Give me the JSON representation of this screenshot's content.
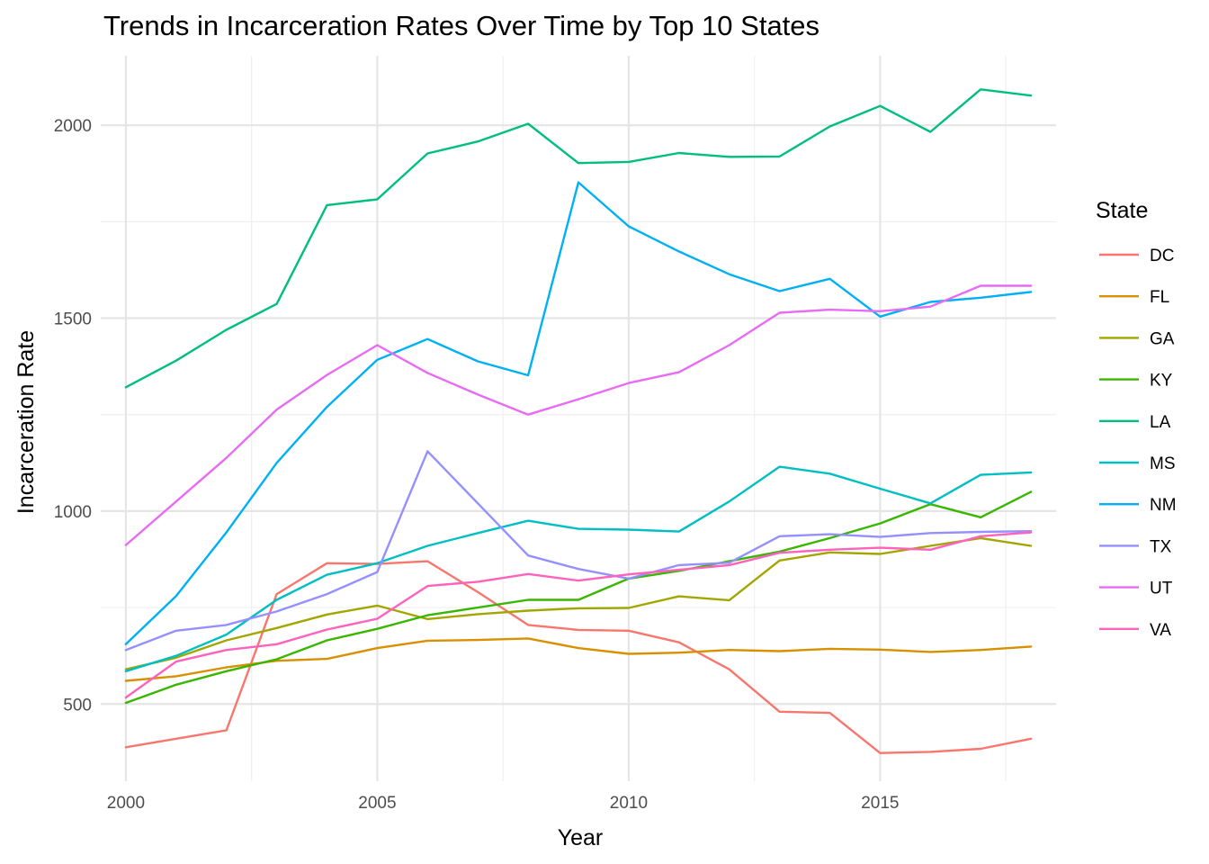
{
  "chart_data": {
    "type": "line",
    "title": "Trends in Incarceration Rates Over Time by Top 10 States",
    "xlabel": "Year",
    "ylabel": "Incarceration Rate",
    "xlim": [
      1999.5,
      2018.5
    ],
    "ylim": [
      300,
      2180
    ],
    "x_ticks": [
      2000,
      2005,
      2010,
      2015
    ],
    "x_tick_labels": [
      "2000",
      "2005",
      "2010",
      "2015"
    ],
    "x_minor_ticks": [
      2002.5,
      2007.5,
      2012.5,
      2017.5
    ],
    "y_ticks": [
      500,
      1000,
      1500,
      2000
    ],
    "y_tick_labels": [
      "500",
      "1000",
      "1500",
      "2000"
    ],
    "y_minor_ticks": [
      750,
      1250,
      1750
    ],
    "grid": true,
    "legend": {
      "title": "State",
      "position": "right"
    },
    "x": [
      2000,
      2001,
      2002,
      2003,
      2004,
      2005,
      2006,
      2007,
      2008,
      2009,
      2010,
      2011,
      2012,
      2013,
      2014,
      2015,
      2016,
      2017,
      2018
    ],
    "series": [
      {
        "name": "DC",
        "color": "#F8766D",
        "values": [
          388,
          410,
          432,
          785,
          865,
          863,
          870,
          790,
          705,
          692,
          690,
          660,
          590,
          480,
          477,
          373,
          376,
          384,
          410
        ]
      },
      {
        "name": "FL",
        "color": "#D89000",
        "values": [
          560,
          572,
          595,
          612,
          617,
          645,
          664,
          666,
          670,
          645,
          630,
          633,
          640,
          637,
          643,
          641,
          635,
          640,
          649
        ]
      },
      {
        "name": "GA",
        "color": "#A3A500",
        "values": [
          590,
          620,
          665,
          697,
          732,
          755,
          720,
          733,
          742,
          748,
          749,
          779,
          769,
          872,
          893,
          889,
          910,
          930,
          910
        ]
      },
      {
        "name": "KY",
        "color": "#39B600",
        "values": [
          503,
          550,
          585,
          616,
          665,
          695,
          730,
          750,
          770,
          770,
          825,
          845,
          870,
          895,
          930,
          968,
          1018,
          984,
          1050
        ]
      },
      {
        "name": "LA",
        "color": "#00BF7D",
        "values": [
          1321,
          1390,
          1470,
          1537,
          1793,
          1808,
          1927,
          1958,
          2004,
          1902,
          1905,
          1928,
          1918,
          1919,
          1997,
          2050,
          1983,
          2093,
          2077
        ]
      },
      {
        "name": "MS",
        "color": "#00BFC4",
        "values": [
          585,
          625,
          680,
          770,
          835,
          865,
          910,
          943,
          975,
          954,
          952,
          947,
          1025,
          1115,
          1097,
          1058,
          1020,
          1094,
          1100
        ]
      },
      {
        "name": "NM",
        "color": "#00B0F6",
        "values": [
          655,
          780,
          945,
          1125,
          1270,
          1392,
          1446,
          1388,
          1352,
          1852,
          1738,
          1673,
          1614,
          1570,
          1602,
          1504,
          1542,
          1553,
          1568
        ]
      },
      {
        "name": "TX",
        "color": "#9590FF",
        "values": [
          640,
          690,
          705,
          740,
          785,
          842,
          1155,
          1020,
          885,
          850,
          825,
          860,
          866,
          935,
          940,
          933,
          943,
          946,
          948
        ]
      },
      {
        "name": "UT",
        "color": "#E76BF3",
        "values": [
          912,
          1025,
          1138,
          1263,
          1353,
          1430,
          1358,
          1302,
          1250,
          1290,
          1332,
          1360,
          1430,
          1514,
          1522,
          1518,
          1530,
          1584,
          1584
        ]
      },
      {
        "name": "VA",
        "color": "#FF62BC",
        "values": [
          517,
          610,
          640,
          655,
          693,
          721,
          806,
          817,
          837,
          820,
          836,
          848,
          860,
          892,
          900,
          905,
          900,
          935,
          945
        ]
      }
    ]
  }
}
